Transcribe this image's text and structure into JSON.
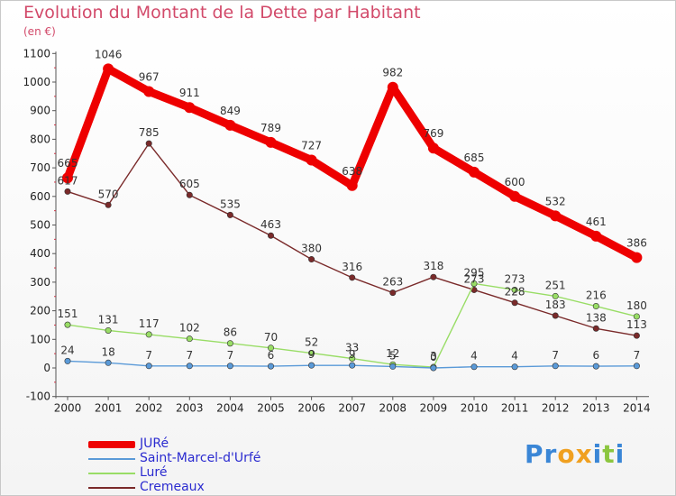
{
  "title": "Evolution du Montant de la Dette par Habitant",
  "unit": "(en €)",
  "logo": "Proxiti",
  "chart_data": {
    "type": "line",
    "x": [
      "2000",
      "2001",
      "2002",
      "2003",
      "2004",
      "2005",
      "2006",
      "2007",
      "2008",
      "2009",
      "2010",
      "2011",
      "2012",
      "2013",
      "2014"
    ],
    "ylim": [
      -100,
      1100
    ],
    "yticks": [
      -100,
      0,
      100,
      200,
      300,
      400,
      500,
      600,
      700,
      800,
      900,
      1000,
      1100
    ],
    "grid": false,
    "legend_position": "bottom-left",
    "series": [
      {
        "name": "JURé",
        "color": "#ee0000",
        "values": [
          665,
          1046,
          967,
          911,
          849,
          789,
          727,
          638,
          982,
          769,
          685,
          600,
          532,
          461,
          386
        ]
      },
      {
        "name": "Saint-Marcel-d'Urfé",
        "color": "#5a9ad8",
        "values": [
          24,
          18,
          7,
          7,
          7,
          6,
          9,
          9,
          5,
          0,
          4,
          4,
          7,
          6,
          7
        ]
      },
      {
        "name": "Luré",
        "color": "#99dd66",
        "values": [
          151,
          131,
          117,
          102,
          86,
          70,
          52,
          33,
          12,
          3,
          295,
          273,
          251,
          216,
          180
        ]
      },
      {
        "name": "Cremeaux",
        "color": "#7a2a2a",
        "values": [
          617,
          570,
          785,
          605,
          535,
          463,
          380,
          316,
          263,
          318,
          273,
          228,
          183,
          138,
          113
        ]
      }
    ]
  }
}
